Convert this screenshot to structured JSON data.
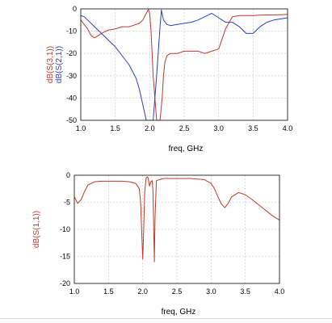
{
  "chart_data": [
    {
      "type": "line",
      "xlabel": "freq, GHz",
      "ylabel_parts": [
        {
          "text": "dB(S(3,1))",
          "color": "#c0392b"
        },
        {
          "text": "dB(S(2,1))",
          "color": "#2b3fc0"
        }
      ],
      "xlim": [
        1.0,
        4.0
      ],
      "ylim": [
        -50,
        0
      ],
      "xticks": [
        "1.0",
        "1.5",
        "2.0",
        "2.5",
        "3.0",
        "3.5",
        "4.0"
      ],
      "yticks": [
        "0",
        "-10",
        "-20",
        "-30",
        "-40",
        "-50"
      ],
      "grid": true,
      "series": [
        {
          "color": "#c0392b",
          "x": [
            1.0,
            1.1,
            1.15,
            1.2,
            1.3,
            1.4,
            1.5,
            1.6,
            1.7,
            1.8,
            1.85,
            1.9,
            1.95,
            1.98,
            2.0,
            2.02,
            2.05,
            2.1,
            2.15,
            2.18,
            2.2,
            2.22,
            2.25,
            2.3,
            2.4,
            2.5,
            2.6,
            2.7,
            2.8,
            2.9,
            3.0,
            3.1,
            3.2,
            3.3,
            3.4,
            3.5,
            3.6,
            3.7,
            3.8,
            3.9,
            4.0
          ],
          "y": [
            -5,
            -9,
            -12,
            -13,
            -11,
            -9.5,
            -9,
            -8,
            -8,
            -7,
            -6.5,
            -5,
            -2,
            -0.3,
            -2,
            -10,
            -30,
            -50,
            -50,
            -40,
            -30,
            -24,
            -21,
            -20,
            -20,
            -19,
            -19,
            -19,
            -20,
            -19,
            -18,
            -9,
            -3.5,
            -3,
            -3,
            -3,
            -2.8,
            -2.7,
            -2.7,
            -2.6,
            -2.5
          ]
        },
        {
          "color": "#2b3fc0",
          "x": [
            1.0,
            1.05,
            1.1,
            1.2,
            1.3,
            1.4,
            1.5,
            1.6,
            1.7,
            1.8,
            1.85,
            1.9,
            1.95,
            1.98,
            2.0,
            2.05,
            2.1,
            2.15,
            2.17,
            2.2,
            2.25,
            2.3,
            2.4,
            2.5,
            2.6,
            2.7,
            2.8,
            2.9,
            3.0,
            3.1,
            3.2,
            3.3,
            3.4,
            3.5,
            3.6,
            3.7,
            3.8,
            3.9,
            4.0
          ],
          "y": [
            -3,
            -3.5,
            -5,
            -8,
            -11,
            -14,
            -17,
            -21,
            -25,
            -31,
            -36,
            -43,
            -50,
            -50,
            -50,
            -50,
            -30,
            -8,
            -0.5,
            -5,
            -7,
            -7.5,
            -7,
            -6.5,
            -6,
            -5,
            -3.5,
            -2,
            -4,
            -6,
            -6,
            -8,
            -11,
            -11,
            -8,
            -6,
            -5,
            -4.5,
            -4
          ]
        }
      ]
    },
    {
      "type": "line",
      "xlabel": "freq, GHz",
      "ylabel_parts": [
        {
          "text": "dB(S(1,1))",
          "color": "#c0392b"
        }
      ],
      "xlim": [
        1.0,
        4.0
      ],
      "ylim": [
        -20,
        0
      ],
      "xticks": [
        "1.0",
        "1.5",
        "2.0",
        "2.5",
        "3.0",
        "3.5",
        "4.0"
      ],
      "yticks": [
        "0",
        "-5",
        "-10",
        "-15",
        "-20"
      ],
      "grid": true,
      "series": [
        {
          "color": "#c0392b",
          "x": [
            1.0,
            1.05,
            1.1,
            1.15,
            1.2,
            1.3,
            1.4,
            1.5,
            1.6,
            1.7,
            1.8,
            1.9,
            1.95,
            1.97,
            1.99,
            2.0,
            2.01,
            2.03,
            2.05,
            2.07,
            2.08,
            2.1,
            2.12,
            2.14,
            2.15,
            2.16,
            2.17,
            2.18,
            2.2,
            2.3,
            2.4,
            2.5,
            2.6,
            2.7,
            2.8,
            2.9,
            3.0,
            3.05,
            3.1,
            3.15,
            3.2,
            3.25,
            3.3,
            3.4,
            3.5,
            3.6,
            3.7,
            3.8,
            3.9,
            4.0
          ],
          "y": [
            -4,
            -5.2,
            -4.5,
            -3,
            -1.8,
            -1.2,
            -1.1,
            -1.1,
            -1.1,
            -1.1,
            -1.2,
            -1.5,
            -2.5,
            -5,
            -12,
            -15.5,
            -12,
            -3,
            -0.5,
            -0.3,
            -0.5,
            -2,
            -1.2,
            -1,
            -3,
            -9,
            -16,
            -8,
            -1,
            -0.6,
            -0.6,
            -0.6,
            -0.6,
            -0.6,
            -0.7,
            -0.8,
            -1.5,
            -2.5,
            -4,
            -5.3,
            -6,
            -5.2,
            -4,
            -3.2,
            -3.6,
            -4.5,
            -5.5,
            -6.5,
            -7.5,
            -8.3
          ]
        }
      ]
    }
  ]
}
